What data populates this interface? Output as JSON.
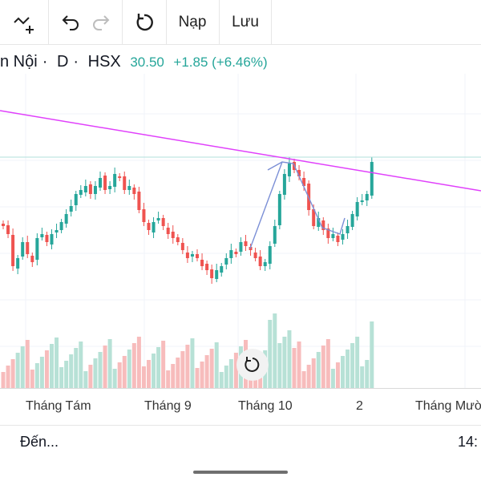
{
  "toolbar": {
    "load_label": "Nạp",
    "save_label": "Lưu"
  },
  "symbol": {
    "name": "n Nội",
    "timeframe": "D",
    "exchange": "HSX",
    "price": "30.50",
    "change": "+1.85 (+6.46%)"
  },
  "xaxis": {
    "labels": [
      "Tháng Tám",
      "Tháng 9",
      "Tháng 10",
      "2",
      "Tháng Mười"
    ]
  },
  "bottom": {
    "left_text": "Đến...",
    "right_text": "14:"
  },
  "colors": {
    "up": "#26a69a",
    "down": "#ef5350",
    "trendline": "#e040fb",
    "pattern": "#7b8fd6"
  }
}
